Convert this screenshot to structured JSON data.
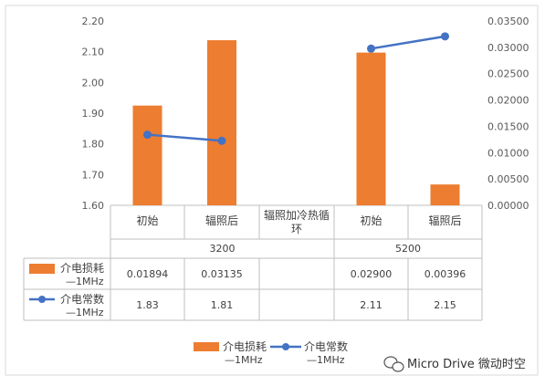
{
  "chart_data": {
    "type": "bar",
    "categories": [
      {
        "label": "初始",
        "group": "3200"
      },
      {
        "label": "辐照后",
        "group": "3200"
      },
      {
        "label": "辐照加冷热循环",
        "group": "3200"
      },
      {
        "label": "初始",
        "group": "5200"
      },
      {
        "label": "辐照后",
        "group": "5200"
      }
    ],
    "groups": [
      "3200",
      "5200"
    ],
    "y_left": {
      "ylim": [
        1.6,
        2.2
      ],
      "ticks": [
        "1.60",
        "1.70",
        "1.80",
        "1.90",
        "2.00",
        "2.10",
        "2.20"
      ]
    },
    "y_right": {
      "ylim": [
        0,
        0.035
      ],
      "ticks": [
        "0.00000",
        "0.00500",
        "0.01000",
        "0.01500",
        "0.02000",
        "0.02500",
        "0.03000",
        "0.03500"
      ]
    },
    "series": [
      {
        "name": "介电损耗—1MHz",
        "kind": "bar",
        "axis": "right",
        "color": "#ED7D31",
        "values": [
          0.01894,
          0.03135,
          null,
          0.029,
          0.00396
        ],
        "table_values": [
          "0.01894",
          "0.03135",
          "",
          "0.02900",
          "0.00396"
        ]
      },
      {
        "name": "介电常数—1MHz",
        "kind": "line",
        "axis": "left",
        "color": "#4472C4",
        "values": [
          1.83,
          1.81,
          null,
          2.11,
          2.15
        ],
        "table_values": [
          "1.83",
          "1.81",
          "",
          "2.11",
          "2.15"
        ]
      }
    ],
    "legend_position": "bottom",
    "grid": false
  },
  "table": {
    "row1_label": "介电损耗",
    "row1_sublabel": "—1MHz",
    "row2_label": "介电常数",
    "row2_sublabel": "—1MHz"
  },
  "legend": {
    "bar_label": "介电损耗",
    "bar_sublabel": "—1MHz",
    "line_label": "介电常数",
    "line_sublabel": "—1MHz"
  },
  "watermark": "Micro Drive 微动时空",
  "colors": {
    "bar": "#ED7D31",
    "line": "#4472C4",
    "grid": "#BFBFBF",
    "border": "#D9D9D9"
  }
}
